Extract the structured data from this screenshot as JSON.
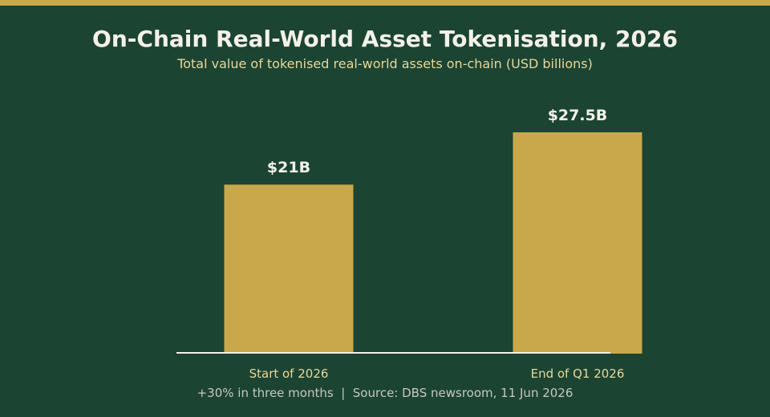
{
  "colors": {
    "background": "#1b4433",
    "accent": "#c9a84c",
    "title": "#f4f1e8",
    "subtitle": "#e8d79a",
    "category_label": "#e8d79a",
    "value_label": "#f4f1e8",
    "footer": "#c8c8be",
    "axis": "#f4f1e8"
  },
  "chart_data": {
    "type": "bar",
    "title": "On-Chain Real-World Asset Tokenisation, 2026",
    "subtitle": "Total value of tokenised real-world assets on-chain (USD billions)",
    "categories": [
      "Start of 2026",
      "End of Q1 2026"
    ],
    "values": [
      21,
      27.5
    ],
    "value_labels": [
      "$21B",
      "$27.5B"
    ],
    "ylim": [
      0,
      27.5
    ],
    "grid": false,
    "legend": "none",
    "footer": "+30% in three months  |  Source: DBS newsroom, 11 Jun 2026"
  }
}
